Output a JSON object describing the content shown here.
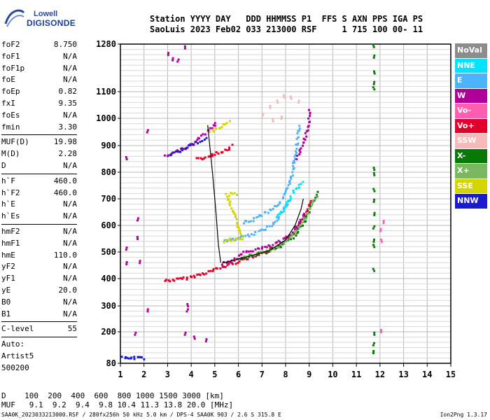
{
  "logo": {
    "line1": "Lowell",
    "line2": "DIGISONDE"
  },
  "header": {
    "line1": "Station YYYY DAY   DDD HHMMSS P1  FFS S AXN PPS IGA PS",
    "line2": "SaoLuis 2023 Feb02 033 213000 RSF     1 715 100 00- 11"
  },
  "params": [
    {
      "label": "foF2",
      "value": "8.750"
    },
    {
      "label": "foF1",
      "value": "N/A"
    },
    {
      "label": "foF1p",
      "value": "N/A"
    },
    {
      "label": "foE",
      "value": "N/A"
    },
    {
      "label": "foEp",
      "value": "0.82"
    },
    {
      "label": "fxI",
      "value": "9.35"
    },
    {
      "label": "foEs",
      "value": "N/A"
    },
    {
      "label": "fmin",
      "value": "3.30"
    },
    {
      "sep": true
    },
    {
      "label": "MUF(D)",
      "value": "19.98"
    },
    {
      "label": "M(D)",
      "value": "2.28"
    },
    {
      "label": "D",
      "value": "N/A"
    },
    {
      "sep": true
    },
    {
      "label": "h`F",
      "value": "460.0"
    },
    {
      "label": "h`F2",
      "value": "460.0"
    },
    {
      "label": "h`E",
      "value": "N/A"
    },
    {
      "label": "h`Es",
      "value": "N/A"
    },
    {
      "sep": true
    },
    {
      "label": "hmF2",
      "value": "N/A"
    },
    {
      "label": "hmF1",
      "value": "N/A"
    },
    {
      "label": "hmE",
      "value": "110.0"
    },
    {
      "label": "yF2",
      "value": "N/A"
    },
    {
      "label": "yF1",
      "value": "N/A"
    },
    {
      "label": "yE",
      "value": "20.0"
    },
    {
      "label": "B0",
      "value": "N/A"
    },
    {
      "label": "B1",
      "value": "N/A"
    },
    {
      "sep": true
    },
    {
      "label": "C-level",
      "value": "55"
    },
    {
      "sep": true
    },
    {
      "label": "Auto:",
      "value": ""
    },
    {
      "label": "Artist5",
      "value": ""
    },
    {
      "label": "500200",
      "value": ""
    }
  ],
  "legend": [
    {
      "label": "NoVal",
      "color": "#8c8c8c",
      "text": "#ffffff"
    },
    {
      "label": "NNE",
      "color": "#00e5ff",
      "text": "#ffffff"
    },
    {
      "label": "E",
      "color": "#4cb4ff",
      "text": "#ffffff"
    },
    {
      "label": "W",
      "color": "#b0009a",
      "text": "#ffffff"
    },
    {
      "label": "Vo-",
      "color": "#ff5fb0",
      "text": "#ffffff"
    },
    {
      "label": "Vo+",
      "color": "#e0002a",
      "text": "#ffffff"
    },
    {
      "label": "SSW",
      "color": "#f7b8b8",
      "text": "#ffffff"
    },
    {
      "label": "X-",
      "color": "#087a08",
      "text": "#ffffff"
    },
    {
      "label": "X+",
      "color": "#7ab860",
      "text": "#ffffff"
    },
    {
      "label": "SSE",
      "color": "#d4d400",
      "text": "#ffffff"
    },
    {
      "label": "NNW",
      "color": "#1a1ad0",
      "text": "#ffffff"
    }
  ],
  "footer": {
    "d_line": "D    100  200  400  600  800 1000 1500 3000 [km]",
    "muf_line": "MUF   9.1  9.2  9.4  9.8 10.4 11.3 13.8 20.0 [MHz]",
    "file": "SAA0K_2023033213000.RSF / 280fx256h 50 kHz 5.0 km / DPS-4 SAA0K 903 / 2.6 S 315.8 E",
    "version": "Ion2Png 1.3.17"
  },
  "chart_data": {
    "type": "scatter",
    "title": "",
    "xlabel": "",
    "ylabel": "",
    "xlim": [
      1,
      15
    ],
    "ylim": [
      80,
      1280
    ],
    "xticks": [
      1,
      2,
      3,
      4,
      5,
      6,
      7,
      8,
      9,
      10,
      11,
      12,
      13,
      14,
      15
    ],
    "yticks": [
      80,
      200,
      300,
      400,
      500,
      600,
      700,
      800,
      900,
      1000,
      1100,
      1280
    ],
    "grid": true,
    "legend_position": "right",
    "traces": [
      {
        "name": "o-trace F2",
        "color": "#e0002a",
        "points": [
          [
            2.9,
            392
          ],
          [
            3.3,
            395
          ],
          [
            3.7,
            400
          ],
          [
            4.1,
            408
          ],
          [
            4.5,
            418
          ],
          [
            4.9,
            430
          ],
          [
            5.3,
            442
          ],
          [
            5.7,
            455
          ],
          [
            6.1,
            468
          ],
          [
            6.5,
            480
          ],
          [
            6.9,
            492
          ],
          [
            7.3,
            505
          ],
          [
            7.7,
            520
          ],
          [
            8.0,
            540
          ],
          [
            8.3,
            565
          ],
          [
            8.6,
            600
          ],
          [
            8.8,
            635
          ],
          [
            9.0,
            680
          ],
          [
            9.1,
            705
          ]
        ]
      },
      {
        "name": "o-trace F2 purple",
        "color": "#b0009a",
        "points": [
          [
            5.3,
            455
          ],
          [
            5.8,
            470
          ],
          [
            6.3,
            500
          ],
          [
            6.8,
            510
          ],
          [
            7.3,
            520
          ],
          [
            7.8,
            540
          ],
          [
            8.2,
            565
          ],
          [
            8.6,
            610
          ],
          [
            8.9,
            660
          ]
        ]
      },
      {
        "name": "x-trace",
        "color": "#087a08",
        "points": [
          [
            6.0,
            472
          ],
          [
            6.6,
            488
          ],
          [
            7.2,
            500
          ],
          [
            7.8,
            520
          ],
          [
            8.3,
            555
          ],
          [
            8.8,
            610
          ],
          [
            9.2,
            690
          ],
          [
            9.4,
            730
          ]
        ]
      },
      {
        "name": "x+ trace",
        "color": "#7ab860",
        "points": [
          [
            6.2,
            480
          ],
          [
            7.0,
            498
          ],
          [
            7.6,
            515
          ],
          [
            8.4,
            570
          ],
          [
            9.0,
            650
          ],
          [
            9.3,
            715
          ]
        ]
      },
      {
        "name": "E echoes multi",
        "color": "#4cb4ff",
        "points": [
          [
            6.2,
            610
          ],
          [
            6.6,
            620
          ],
          [
            7.0,
            640
          ],
          [
            7.4,
            660
          ],
          [
            7.8,
            690
          ],
          [
            8.0,
            720
          ],
          [
            8.2,
            760
          ],
          [
            8.3,
            800
          ],
          [
            8.4,
            860
          ],
          [
            8.5,
            920
          ],
          [
            8.6,
            980
          ]
        ]
      },
      {
        "name": "E echoes lower",
        "color": "#4cb4ff",
        "points": [
          [
            5.4,
            540
          ],
          [
            5.8,
            548
          ],
          [
            6.4,
            560
          ],
          [
            7.0,
            580
          ],
          [
            7.4,
            600
          ],
          [
            7.8,
            640
          ],
          [
            8.2,
            700
          ]
        ]
      },
      {
        "name": "NNE",
        "color": "#00e5ff",
        "points": [
          [
            7.6,
            630
          ],
          [
            7.9,
            660
          ],
          [
            8.1,
            690
          ],
          [
            8.3,
            720
          ],
          [
            8.6,
            750
          ],
          [
            8.8,
            770
          ]
        ]
      },
      {
        "name": "second hop purple",
        "color": "#b0009a",
        "points": [
          [
            2.9,
            858
          ],
          [
            3.3,
            872
          ],
          [
            3.7,
            890
          ],
          [
            4.0,
            905
          ],
          [
            4.3,
            925
          ],
          [
            4.6,
            945
          ],
          [
            4.9,
            965
          ],
          [
            5.1,
            990
          ]
        ]
      },
      {
        "name": "second hop NNW",
        "color": "#1a1ad0",
        "points": [
          [
            3.1,
            865
          ],
          [
            3.5,
            880
          ],
          [
            3.9,
            898
          ],
          [
            4.3,
            912
          ],
          [
            4.7,
            935
          ]
        ]
      },
      {
        "name": "second hop SSE",
        "color": "#d4d400",
        "points": [
          [
            4.8,
            950
          ],
          [
            5.1,
            962
          ],
          [
            5.4,
            975
          ],
          [
            5.7,
            988
          ]
        ]
      },
      {
        "name": "second hop red",
        "color": "#e0002a",
        "points": [
          [
            4.2,
            848
          ],
          [
            4.7,
            858
          ],
          [
            5.1,
            870
          ],
          [
            5.5,
            885
          ],
          [
            5.8,
            905
          ]
        ]
      },
      {
        "name": "upper scatter",
        "color": "#f7b8b8",
        "points": [
          [
            7.0,
            1010
          ],
          [
            7.3,
            1040
          ],
          [
            7.6,
            1060
          ],
          [
            7.9,
            1080
          ],
          [
            8.2,
            1075
          ],
          [
            8.5,
            1060
          ],
          [
            7.4,
            990
          ],
          [
            7.8,
            1000
          ]
        ]
      },
      {
        "name": "mid purple",
        "color": "#b0009a",
        "points": [
          [
            8.5,
            850
          ],
          [
            8.7,
            900
          ],
          [
            8.9,
            950
          ],
          [
            9.0,
            990
          ],
          [
            9.0,
            1040
          ]
        ]
      },
      {
        "name": "SSE mid",
        "color": "#d4d400",
        "points": [
          [
            5.4,
            540
          ],
          [
            5.8,
            545
          ],
          [
            6.2,
            548
          ],
          [
            5.5,
            715
          ],
          [
            6.0,
            720
          ]
        ]
      },
      {
        "name": "column 11.7",
        "color": "#087a08",
        "points": [
          [
            11.7,
            1270
          ],
          [
            11.7,
            1230
          ],
          [
            11.7,
            1170
          ],
          [
            11.7,
            1130
          ],
          [
            11.7,
            1110
          ],
          [
            11.7,
            810
          ],
          [
            11.7,
            790
          ],
          [
            11.7,
            730
          ],
          [
            11.7,
            690
          ],
          [
            11.7,
            640
          ],
          [
            11.7,
            590
          ],
          [
            11.7,
            540
          ],
          [
            11.7,
            520
          ],
          [
            11.7,
            430
          ],
          [
            11.7,
            190
          ],
          [
            11.7,
            150
          ],
          [
            11.7,
            120
          ]
        ]
      },
      {
        "name": "column 12",
        "color": "#ff5fb0",
        "points": [
          [
            12.0,
            580
          ],
          [
            12.0,
            540
          ],
          [
            12.1,
            610
          ],
          [
            12.0,
            200
          ]
        ]
      },
      {
        "name": "left scatter",
        "color": "#b0009a",
        "points": [
          [
            1.2,
            850
          ],
          [
            1.2,
            510
          ],
          [
            1.2,
            455
          ],
          [
            1.7,
            620
          ],
          [
            1.7,
            550
          ],
          [
            2.1,
            280
          ],
          [
            1.8,
            460
          ],
          [
            1.6,
            190
          ],
          [
            3.8,
            300
          ],
          [
            3.8,
            280
          ],
          [
            3.7,
            190
          ],
          [
            4.1,
            175
          ],
          [
            4.6,
            165
          ],
          [
            2.1,
            950
          ],
          [
            3.0,
            1240
          ],
          [
            3.4,
            1215
          ],
          [
            3.7,
            1265
          ],
          [
            3.2,
            1220
          ]
        ]
      },
      {
        "name": "bottom NNW",
        "color": "#1a1ad0",
        "points": [
          [
            1.1,
            100
          ],
          [
            1.3,
            100
          ],
          [
            1.5,
            100
          ],
          [
            1.7,
            100
          ],
          [
            1.9,
            100
          ],
          [
            2.0,
            100
          ]
        ]
      }
    ],
    "curves": [
      {
        "name": "profile curve",
        "points": [
          [
            4.7,
            975
          ],
          [
            4.9,
            800
          ],
          [
            5.05,
            650
          ],
          [
            5.15,
            530
          ],
          [
            5.25,
            460
          ]
        ]
      },
      {
        "name": "main fit",
        "points": [
          [
            5.3,
            458
          ],
          [
            6.3,
            480
          ],
          [
            7.3,
            505
          ],
          [
            8.0,
            545
          ],
          [
            8.4,
            600
          ],
          [
            8.65,
            660
          ],
          [
            8.75,
            700
          ]
        ]
      }
    ]
  }
}
